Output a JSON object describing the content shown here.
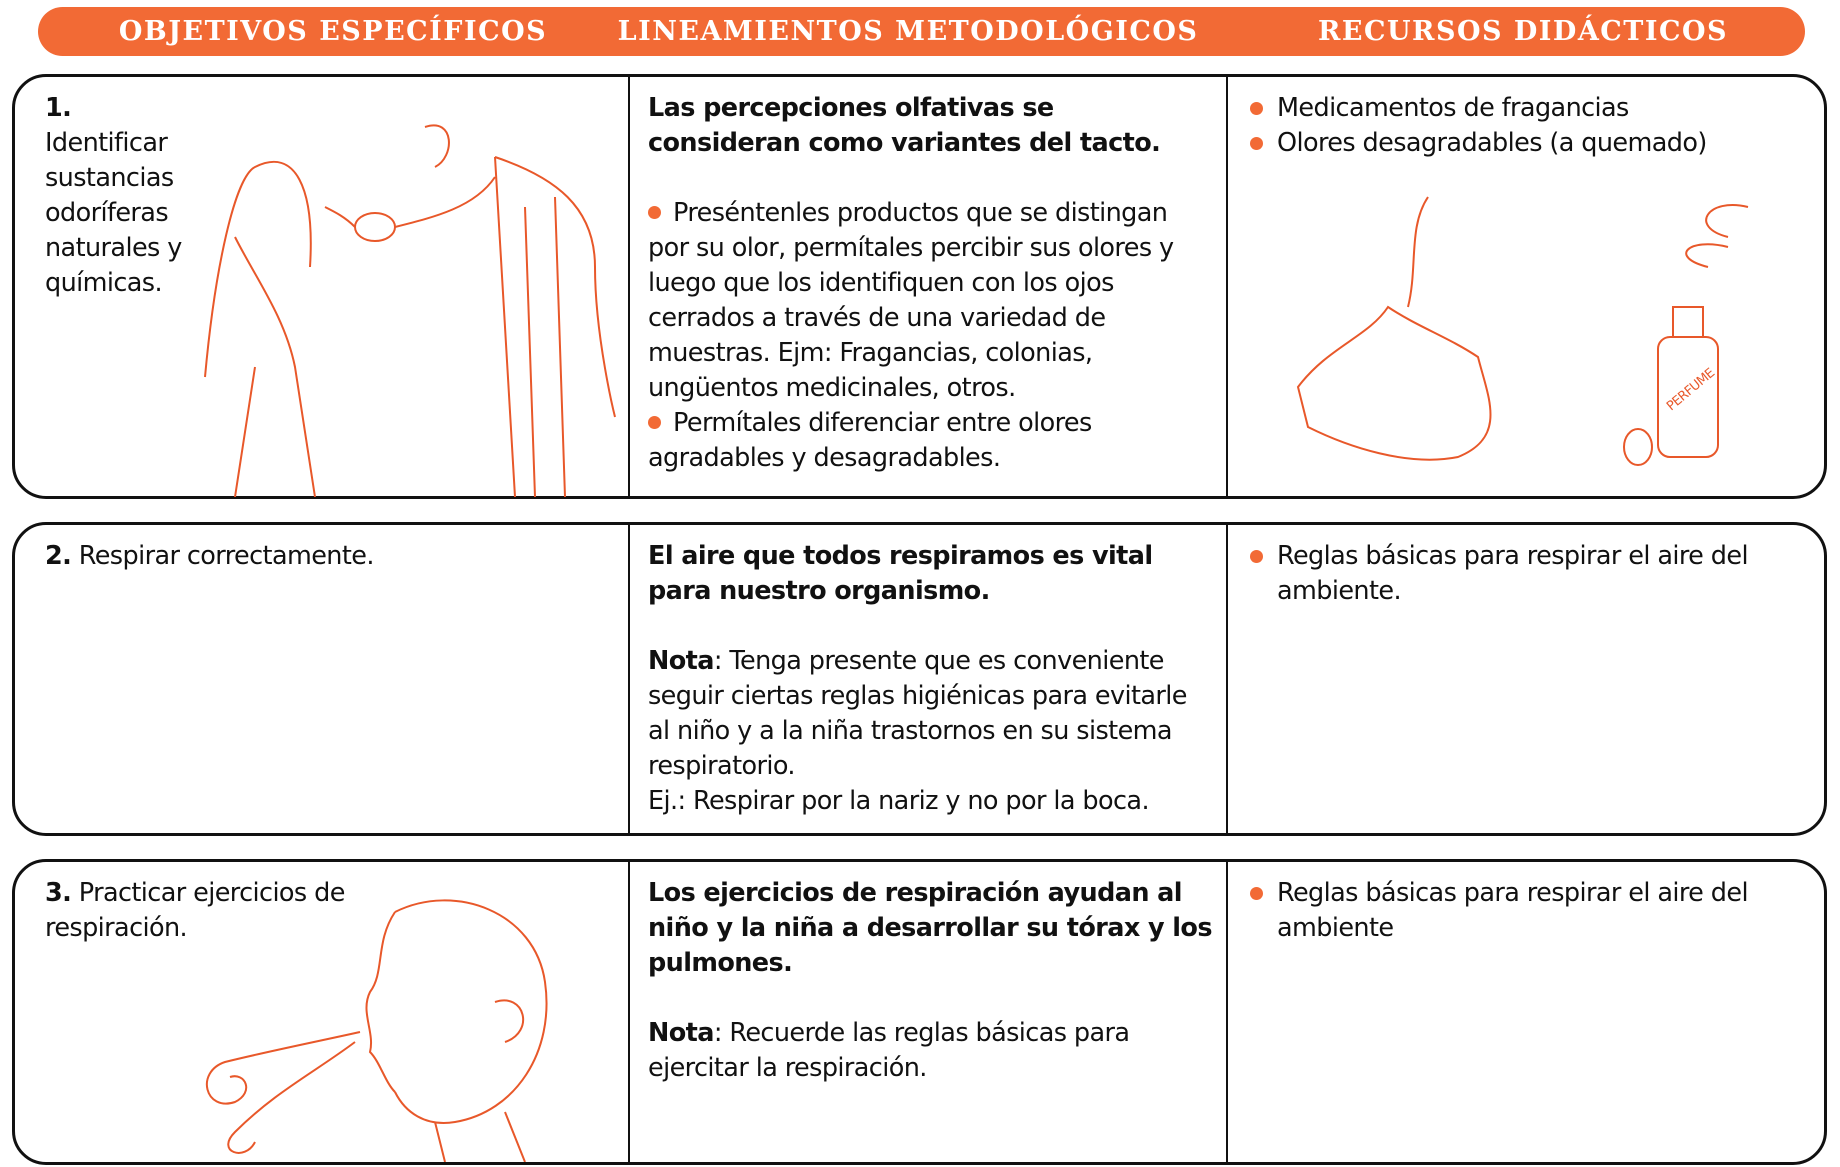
{
  "header": {
    "columns": [
      "OBJETIVOS ESPECÍFICOS",
      "LINEAMIENTOS METODOLÓGICOS",
      "RECURSOS DIDÁCTICOS"
    ]
  },
  "rows": [
    {
      "number": "1.",
      "objective": "Identificar sustancias odoríferas naturales y químicas.",
      "heading": "Las percepciones olfativas se consideran como variantes del tacto.",
      "bullets": [
        "Preséntenles productos que se distingan por su olor, permítales percibir sus olores y luego que los identifiquen con los ojos cerrados a través de una variedad de muestras. Ejm: Fragancias, colonias, ungüentos medicinales, otros.",
        "Permítales diferenciar entre olores agradables y desagradables."
      ],
      "resources": [
        "Medicamentos de fragancias",
        "Olores desagradables (a quemado)"
      ],
      "image_label": "PERFUME"
    },
    {
      "number": "2.",
      "objective": "Respirar correctamente.",
      "heading": "El aire que todos respiramos es vital para nuestro organismo.",
      "note_label": "Nota",
      "note": ": Tenga presente que es conveniente seguir ciertas reglas higiénicas para evitarle al niño y a la niña trastornos en su sistema respiratorio.",
      "example": "Ej.: Respirar por la nariz y no por la boca.",
      "resources": [
        "Reglas básicas para respirar el aire del ambiente."
      ]
    },
    {
      "number": "3.",
      "objective": "Practicar ejercicios de respiración.",
      "heading": "Los ejercicios de respiración ayudan al niño y la niña a desarrollar su tórax y los pulmones.",
      "note_label": "Nota",
      "note": ": Recuerde las reglas básicas para ejercitar la respiración.",
      "resources": [
        "Reglas básicas para respirar el aire del ambiente"
      ]
    }
  ]
}
